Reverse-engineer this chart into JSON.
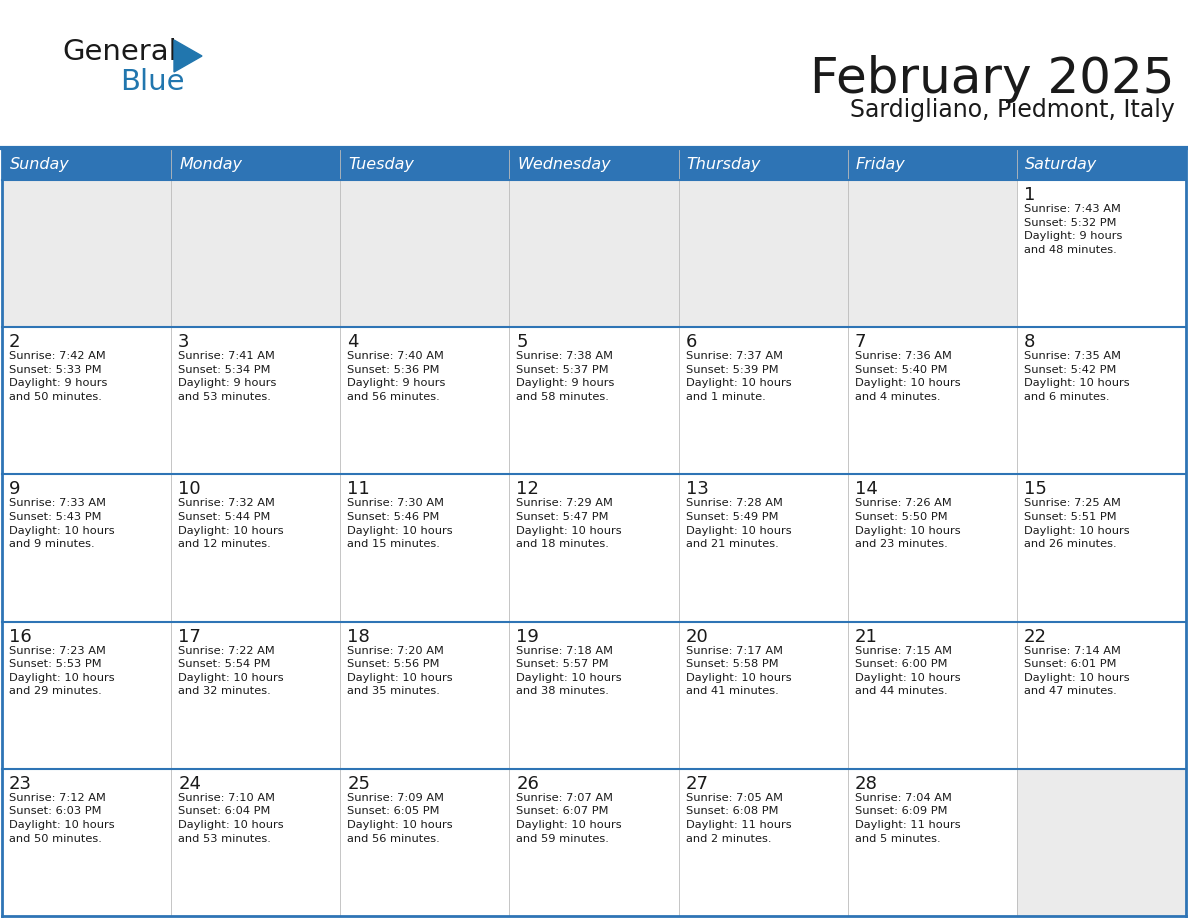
{
  "title": "February 2025",
  "subtitle": "Sardigliano, Piedmont, Italy",
  "header_bg": "#2E74B5",
  "header_text_color": "#FFFFFF",
  "cell_bg_white": "#FFFFFF",
  "cell_bg_gray": "#EBEBEB",
  "border_color": "#2E74B5",
  "sep_line_color": "#2E74B5",
  "day_names": [
    "Sunday",
    "Monday",
    "Tuesday",
    "Wednesday",
    "Thursday",
    "Friday",
    "Saturday"
  ],
  "weeks": [
    [
      {
        "day": "",
        "info": "",
        "empty": true
      },
      {
        "day": "",
        "info": "",
        "empty": true
      },
      {
        "day": "",
        "info": "",
        "empty": true
      },
      {
        "day": "",
        "info": "",
        "empty": true
      },
      {
        "day": "",
        "info": "",
        "empty": true
      },
      {
        "day": "",
        "info": "",
        "empty": true
      },
      {
        "day": "1",
        "info": "Sunrise: 7:43 AM\nSunset: 5:32 PM\nDaylight: 9 hours\nand 48 minutes.",
        "empty": false
      }
    ],
    [
      {
        "day": "2",
        "info": "Sunrise: 7:42 AM\nSunset: 5:33 PM\nDaylight: 9 hours\nand 50 minutes.",
        "empty": false
      },
      {
        "day": "3",
        "info": "Sunrise: 7:41 AM\nSunset: 5:34 PM\nDaylight: 9 hours\nand 53 minutes.",
        "empty": false
      },
      {
        "day": "4",
        "info": "Sunrise: 7:40 AM\nSunset: 5:36 PM\nDaylight: 9 hours\nand 56 minutes.",
        "empty": false
      },
      {
        "day": "5",
        "info": "Sunrise: 7:38 AM\nSunset: 5:37 PM\nDaylight: 9 hours\nand 58 minutes.",
        "empty": false
      },
      {
        "day": "6",
        "info": "Sunrise: 7:37 AM\nSunset: 5:39 PM\nDaylight: 10 hours\nand 1 minute.",
        "empty": false
      },
      {
        "day": "7",
        "info": "Sunrise: 7:36 AM\nSunset: 5:40 PM\nDaylight: 10 hours\nand 4 minutes.",
        "empty": false
      },
      {
        "day": "8",
        "info": "Sunrise: 7:35 AM\nSunset: 5:42 PM\nDaylight: 10 hours\nand 6 minutes.",
        "empty": false
      }
    ],
    [
      {
        "day": "9",
        "info": "Sunrise: 7:33 AM\nSunset: 5:43 PM\nDaylight: 10 hours\nand 9 minutes.",
        "empty": false
      },
      {
        "day": "10",
        "info": "Sunrise: 7:32 AM\nSunset: 5:44 PM\nDaylight: 10 hours\nand 12 minutes.",
        "empty": false
      },
      {
        "day": "11",
        "info": "Sunrise: 7:30 AM\nSunset: 5:46 PM\nDaylight: 10 hours\nand 15 minutes.",
        "empty": false
      },
      {
        "day": "12",
        "info": "Sunrise: 7:29 AM\nSunset: 5:47 PM\nDaylight: 10 hours\nand 18 minutes.",
        "empty": false
      },
      {
        "day": "13",
        "info": "Sunrise: 7:28 AM\nSunset: 5:49 PM\nDaylight: 10 hours\nand 21 minutes.",
        "empty": false
      },
      {
        "day": "14",
        "info": "Sunrise: 7:26 AM\nSunset: 5:50 PM\nDaylight: 10 hours\nand 23 minutes.",
        "empty": false
      },
      {
        "day": "15",
        "info": "Sunrise: 7:25 AM\nSunset: 5:51 PM\nDaylight: 10 hours\nand 26 minutes.",
        "empty": false
      }
    ],
    [
      {
        "day": "16",
        "info": "Sunrise: 7:23 AM\nSunset: 5:53 PM\nDaylight: 10 hours\nand 29 minutes.",
        "empty": false
      },
      {
        "day": "17",
        "info": "Sunrise: 7:22 AM\nSunset: 5:54 PM\nDaylight: 10 hours\nand 32 minutes.",
        "empty": false
      },
      {
        "day": "18",
        "info": "Sunrise: 7:20 AM\nSunset: 5:56 PM\nDaylight: 10 hours\nand 35 minutes.",
        "empty": false
      },
      {
        "day": "19",
        "info": "Sunrise: 7:18 AM\nSunset: 5:57 PM\nDaylight: 10 hours\nand 38 minutes.",
        "empty": false
      },
      {
        "day": "20",
        "info": "Sunrise: 7:17 AM\nSunset: 5:58 PM\nDaylight: 10 hours\nand 41 minutes.",
        "empty": false
      },
      {
        "day": "21",
        "info": "Sunrise: 7:15 AM\nSunset: 6:00 PM\nDaylight: 10 hours\nand 44 minutes.",
        "empty": false
      },
      {
        "day": "22",
        "info": "Sunrise: 7:14 AM\nSunset: 6:01 PM\nDaylight: 10 hours\nand 47 minutes.",
        "empty": false
      }
    ],
    [
      {
        "day": "23",
        "info": "Sunrise: 7:12 AM\nSunset: 6:03 PM\nDaylight: 10 hours\nand 50 minutes.",
        "empty": false
      },
      {
        "day": "24",
        "info": "Sunrise: 7:10 AM\nSunset: 6:04 PM\nDaylight: 10 hours\nand 53 minutes.",
        "empty": false
      },
      {
        "day": "25",
        "info": "Sunrise: 7:09 AM\nSunset: 6:05 PM\nDaylight: 10 hours\nand 56 minutes.",
        "empty": false
      },
      {
        "day": "26",
        "info": "Sunrise: 7:07 AM\nSunset: 6:07 PM\nDaylight: 10 hours\nand 59 minutes.",
        "empty": false
      },
      {
        "day": "27",
        "info": "Sunrise: 7:05 AM\nSunset: 6:08 PM\nDaylight: 11 hours\nand 2 minutes.",
        "empty": false
      },
      {
        "day": "28",
        "info": "Sunrise: 7:04 AM\nSunset: 6:09 PM\nDaylight: 11 hours\nand 5 minutes.",
        "empty": false
      },
      {
        "day": "",
        "info": "",
        "empty": true
      }
    ]
  ],
  "logo_general_color": "#1a1a1a",
  "logo_blue_color": "#2176AE",
  "logo_triangle_color": "#2176AE",
  "title_color": "#1a1a1a",
  "subtitle_color": "#1a1a1a"
}
